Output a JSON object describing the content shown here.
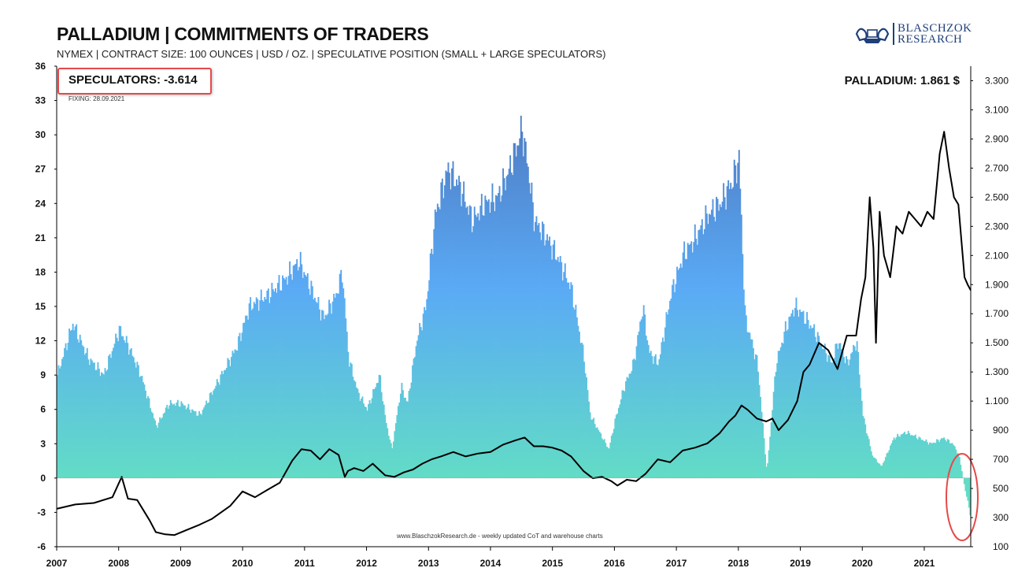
{
  "header": {
    "title": "PALLADIUM | COMMITMENTS OF TRADERS",
    "subtitle": "NYMEX | CONTRACT SIZE: 100 OUNCES | USD / OZ. | SPECULATIVE POSITION (SMALL + LARGE SPECULATORS)"
  },
  "logo": {
    "line1": "BLASCHZOK",
    "line2": "RESEARCH",
    "icon": "ship-logo-icon"
  },
  "annotations": {
    "speculators": "SPECULATORS: -3.614",
    "fixing": "FIXING:  28.09.2021",
    "price": "PALLADIUM: 1.861 $",
    "footer": "www.BlaschzokResearch.de  - weekly updated CoT and warehouse charts"
  },
  "colors": {
    "bar_top": "#4f80c8",
    "bar_mid": "#5aaaf5",
    "bar_bottom": "#62dcc6",
    "price_line": "#000000",
    "highlight": "#e44a4a"
  },
  "chart_data": {
    "type": "bar",
    "title": "PALLADIUM | COMMITMENTS OF TRADERS",
    "x_ticks": [
      "2007",
      "2008",
      "2009",
      "2010",
      "2011",
      "2012",
      "2013",
      "2014",
      "2015",
      "2016",
      "2017",
      "2018",
      "2019",
      "2020",
      "2021"
    ],
    "xlim": [
      2007.0,
      2021.75
    ],
    "y_left": {
      "ylim": [
        -6,
        36
      ],
      "ticks": [
        "-6",
        "-3",
        "0",
        "3",
        "6",
        "9",
        "12",
        "15",
        "18",
        "21",
        "24",
        "27",
        "30",
        "33",
        "36"
      ]
    },
    "y_right": {
      "ylim": [
        100,
        3400
      ],
      "ticks": [
        "100",
        "300",
        "500",
        "700",
        "900",
        "1.100",
        "1.300",
        "1.500",
        "1.700",
        "1.900",
        "2.100",
        "2.300",
        "2.500",
        "2.700",
        "2.900",
        "3.100",
        "3.300"
      ]
    },
    "grid": false,
    "series": [
      {
        "type": "bar",
        "axis": "left",
        "x": [
          2007.0,
          2007.25,
          2007.5,
          2007.75,
          2008.0,
          2008.15,
          2008.35,
          2008.6,
          2008.8,
          2009.0,
          2009.3,
          2009.6,
          2009.9,
          2010.1,
          2010.4,
          2010.7,
          2010.9,
          2011.1,
          2011.3,
          2011.5,
          2011.6,
          2011.7,
          2011.85,
          2012.0,
          2012.2,
          2012.3,
          2012.4,
          2012.55,
          2012.65,
          2012.8,
          2012.95,
          2013.1,
          2013.3,
          2013.5,
          2013.7,
          2013.9,
          2014.1,
          2014.3,
          2014.5,
          2014.6,
          2014.7,
          2014.9,
          2015.1,
          2015.3,
          2015.5,
          2015.6,
          2015.75,
          2015.9,
          2016.0,
          2016.15,
          2016.3,
          2016.45,
          2016.55,
          2016.7,
          2016.9,
          2017.1,
          2017.3,
          2017.5,
          2017.7,
          2017.9,
          2018.0,
          2018.1,
          2018.2,
          2018.3,
          2018.45,
          2018.6,
          2018.75,
          2018.9,
          2019.0,
          2019.2,
          2019.35,
          2019.5,
          2019.6,
          2019.75,
          2019.9,
          2020.0,
          2020.15,
          2020.3,
          2020.5,
          2020.7,
          2020.9,
          2021.1,
          2021.3,
          2021.45,
          2021.55,
          2021.65,
          2021.75
        ],
        "values": [
          9,
          13.5,
          10.5,
          9,
          13,
          11.5,
          9,
          4.5,
          6.5,
          6.5,
          5.5,
          8.5,
          11.5,
          15,
          16,
          17.5,
          19,
          16.5,
          14,
          16,
          18,
          10.5,
          7.5,
          6,
          9,
          5,
          2.5,
          8,
          6.5,
          12,
          15,
          23,
          27,
          25.5,
          22.5,
          24,
          24.5,
          27,
          30.5,
          27,
          22.5,
          21,
          19,
          16.5,
          10.5,
          5.5,
          4,
          2.5,
          5,
          8,
          10,
          15,
          11,
          10,
          16,
          19.5,
          21,
          23,
          24,
          26,
          28,
          14,
          12,
          10,
          0.5,
          10,
          13,
          15,
          14.5,
          13,
          11.5,
          10,
          12,
          10,
          12,
          5.5,
          2,
          1,
          3.5,
          4,
          3.5,
          3,
          3.5,
          3,
          2,
          -1,
          -3.614
        ]
      },
      {
        "type": "line",
        "axis": "right",
        "name": "PALLADIUM",
        "x": [
          2007.0,
          2007.3,
          2007.6,
          2007.9,
          2008.05,
          2008.15,
          2008.3,
          2008.5,
          2008.6,
          2008.75,
          2008.9,
          2009.1,
          2009.3,
          2009.5,
          2009.8,
          2010.0,
          2010.2,
          2010.4,
          2010.6,
          2010.8,
          2010.95,
          2011.1,
          2011.25,
          2011.4,
          2011.55,
          2011.65,
          2011.7,
          2011.8,
          2011.95,
          2012.1,
          2012.2,
          2012.3,
          2012.45,
          2012.6,
          2012.75,
          2012.9,
          2013.05,
          2013.2,
          2013.4,
          2013.6,
          2013.8,
          2014.0,
          2014.2,
          2014.4,
          2014.55,
          2014.7,
          2014.85,
          2015.0,
          2015.15,
          2015.3,
          2015.5,
          2015.65,
          2015.8,
          2015.95,
          2016.05,
          2016.2,
          2016.35,
          2016.5,
          2016.7,
          2016.9,
          2017.1,
          2017.3,
          2017.5,
          2017.7,
          2017.85,
          2017.95,
          2018.05,
          2018.15,
          2018.3,
          2018.45,
          2018.55,
          2018.65,
          2018.8,
          2018.95,
          2019.05,
          2019.15,
          2019.3,
          2019.45,
          2019.6,
          2019.75,
          2019.9,
          2019.98,
          2020.05,
          2020.12,
          2020.18,
          2020.22,
          2020.28,
          2020.35,
          2020.45,
          2020.55,
          2020.65,
          2020.75,
          2020.85,
          2020.95,
          2021.05,
          2021.15,
          2021.25,
          2021.32,
          2021.4,
          2021.48,
          2021.55,
          2021.6,
          2021.65,
          2021.7,
          2021.75
        ],
        "values": [
          360,
          390,
          400,
          440,
          580,
          430,
          420,
          280,
          200,
          185,
          180,
          215,
          250,
          290,
          380,
          480,
          440,
          490,
          540,
          690,
          770,
          760,
          700,
          770,
          730,
          580,
          620,
          640,
          620,
          670,
          630,
          590,
          580,
          610,
          630,
          670,
          700,
          720,
          750,
          720,
          740,
          750,
          800,
          830,
          850,
          790,
          790,
          780,
          760,
          720,
          620,
          570,
          580,
          550,
          520,
          560,
          550,
          600,
          700,
          680,
          760,
          780,
          810,
          880,
          960,
          1000,
          1070,
          1040,
          980,
          960,
          980,
          900,
          970,
          1100,
          1300,
          1350,
          1500,
          1450,
          1320,
          1550,
          1550,
          1800,
          1950,
          2500,
          2150,
          1500,
          2400,
          2100,
          1950,
          2300,
          2250,
          2400,
          2350,
          2300,
          2400,
          2350,
          2800,
          2950,
          2700,
          2500,
          2450,
          2200,
          1950,
          1900,
          1861
        ]
      }
    ]
  }
}
